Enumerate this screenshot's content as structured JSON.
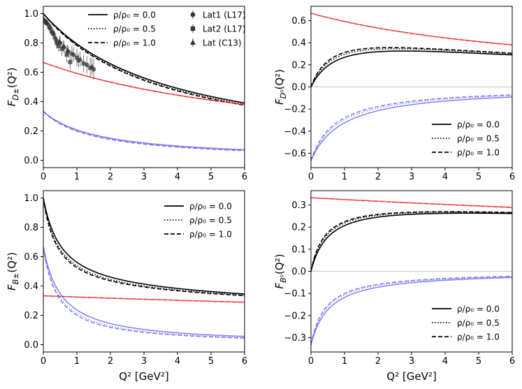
{
  "figure": {
    "xlabel_top": "",
    "xlabel_bottom": "Q² [GeV²]"
  },
  "chart_data": [
    {
      "type": "line",
      "panel": "top-left",
      "ylabel": "F_{D±}(Q²)",
      "ylabel_main": "F",
      "ylabel_sub": "D±",
      "ylabel_tail": "(Q²)",
      "xlabel": "",
      "xlim": [
        0,
        6
      ],
      "ylim": [
        -0.05,
        1.05
      ],
      "xticks": [
        "0",
        "1",
        "2",
        "3",
        "4",
        "5",
        "6"
      ],
      "yticks": [
        "0.0",
        "0.2",
        "0.4",
        "0.6",
        "0.8",
        "1.0"
      ],
      "ytick_values": [
        0.0,
        0.2,
        0.4,
        0.6,
        0.8,
        1.0
      ],
      "zero_line": false,
      "legend_position": "top-right",
      "legend": {
        "lines": [
          {
            "label": "ρ/ρ₀ = 0.0",
            "style": "solid"
          },
          {
            "label": "ρ/ρ₀ = 0.5",
            "style": "dotted"
          },
          {
            "label": "ρ/ρ₀ = 1.0",
            "style": "dashed"
          }
        ],
        "markers": [
          {
            "label": "Lat1 (L17)",
            "marker": "circle"
          },
          {
            "label": "Lat2 (L17)",
            "marker": "square"
          },
          {
            "label": "Lat (C13)",
            "marker": "triangle"
          }
        ]
      },
      "colors": {
        "total": "#000000",
        "component_a": "#ee3333",
        "component_b": "#5555ee"
      },
      "series": [
        {
          "name": "total ρ/ρ₀=0.0",
          "color": "#000000",
          "style": "solid",
          "form": "pole",
          "start": 1.0,
          "mass2": 3.85
        },
        {
          "name": "total ρ/ρ₀=0.5",
          "color": "#000000",
          "style": "dotted",
          "form": "pole",
          "start": 1.0,
          "mass2": 3.7
        },
        {
          "name": "total ρ/ρ₀=1.0",
          "color": "#000000",
          "style": "dashed",
          "form": "pole",
          "start": 1.0,
          "mass2": 3.6
        },
        {
          "name": "red ρ/ρ₀=0.0",
          "color": "#ee3333",
          "style": "solid",
          "form": "pole",
          "start": 0.667,
          "mass2": 8.0
        },
        {
          "name": "red ρ/ρ₀=0.5",
          "color": "#ee3333",
          "style": "dotted",
          "form": "pole",
          "start": 0.667,
          "mass2": 7.95
        },
        {
          "name": "red ρ/ρ₀=1.0",
          "color": "#ee3333",
          "style": "dashed",
          "form": "pole",
          "start": 0.667,
          "mass2": 7.9
        },
        {
          "name": "blue ρ/ρ₀=0.0",
          "color": "#5555ee",
          "style": "solid",
          "form": "pole2",
          "start": 0.333,
          "mass2": 1.65
        },
        {
          "name": "blue ρ/ρ₀=0.5",
          "color": "#5555ee",
          "style": "dotted",
          "form": "pole2",
          "start": 0.333,
          "mass2": 1.55
        },
        {
          "name": "blue ρ/ρ₀=1.0",
          "color": "#5555ee",
          "style": "dashed",
          "form": "pole2",
          "start": 0.333,
          "mass2": 1.48
        }
      ],
      "points": [
        {
          "set": "Lat1 (L17)",
          "marker": "circle",
          "x": [
            0.05,
            0.12,
            0.2,
            0.3,
            0.38,
            0.5,
            0.62,
            0.75,
            0.9,
            1.05,
            1.3,
            1.5
          ],
          "y": [
            0.95,
            0.93,
            0.9,
            0.86,
            0.82,
            0.8,
            0.77,
            0.74,
            0.72,
            0.68,
            0.65,
            0.62
          ],
          "err": [
            0.02,
            0.02,
            0.03,
            0.03,
            0.03,
            0.04,
            0.04,
            0.04,
            0.05,
            0.05,
            0.06,
            0.07
          ]
        },
        {
          "set": "Lat2 (L17)",
          "marker": "square",
          "x": [
            0.08,
            0.18,
            0.28,
            0.4,
            0.45,
            0.55,
            0.7,
            0.8,
            1.0,
            1.2,
            1.4
          ],
          "y": [
            0.94,
            0.91,
            0.87,
            0.8,
            0.78,
            0.76,
            0.72,
            0.67,
            0.7,
            0.66,
            0.63
          ],
          "err": [
            0.02,
            0.03,
            0.03,
            0.04,
            0.04,
            0.05,
            0.05,
            0.05,
            0.06,
            0.06,
            0.07
          ]
        },
        {
          "set": "Lat (C13)",
          "marker": "triangle",
          "x": [
            0.02,
            0.1,
            0.25,
            0.35,
            0.48,
            0.6,
            0.72,
            0.85,
            1.1,
            1.45
          ],
          "y": [
            0.96,
            0.94,
            0.88,
            0.84,
            0.81,
            0.78,
            0.75,
            0.73,
            0.69,
            0.64
          ],
          "err": [
            0.02,
            0.02,
            0.03,
            0.03,
            0.04,
            0.04,
            0.04,
            0.05,
            0.05,
            0.06
          ]
        }
      ]
    },
    {
      "type": "line",
      "panel": "top-right",
      "ylabel": "F_{D⁰}(Q²)",
      "ylabel_main": "F",
      "ylabel_sub": "D⁰",
      "ylabel_tail": "(Q²)",
      "xlabel": "",
      "xlim": [
        0,
        6
      ],
      "ylim": [
        -0.73,
        0.73
      ],
      "xticks": [
        "0",
        "1",
        "2",
        "3",
        "4",
        "5",
        "6"
      ],
      "yticks": [
        "−0.6",
        "−0.4",
        "−0.2",
        "0.0",
        "0.2",
        "0.4",
        "0.6"
      ],
      "ytick_values": [
        -0.6,
        -0.4,
        -0.2,
        0.0,
        0.2,
        0.4,
        0.6
      ],
      "zero_line": true,
      "legend_position": "bottom-right",
      "legend": {
        "lines": [
          {
            "label": "ρ/ρ₀ = 0.0",
            "style": "solid"
          },
          {
            "label": "ρ/ρ₀ = 0.5",
            "style": "dotted"
          },
          {
            "label": "ρ/ρ₀ = 1.0",
            "style": "dashed"
          }
        ],
        "markers": []
      },
      "series": [
        {
          "name": "total ρ/ρ₀=0.0",
          "color": "#000000",
          "style": "solid",
          "form": "diff",
          "a": 0.667,
          "ma": 8.0,
          "b": 0.667,
          "mb": 0.95
        },
        {
          "name": "total ρ/ρ₀=0.5",
          "color": "#000000",
          "style": "dotted",
          "form": "diff",
          "a": 0.667,
          "ma": 7.9,
          "b": 0.667,
          "mb": 0.8
        },
        {
          "name": "total ρ/ρ₀=1.0",
          "color": "#000000",
          "style": "dashed",
          "form": "diff",
          "a": 0.667,
          "ma": 7.8,
          "b": 0.667,
          "mb": 0.72
        },
        {
          "name": "red ρ/ρ₀=0.0",
          "color": "#ee3333",
          "style": "solid",
          "form": "pole",
          "start": 0.667,
          "mass2": 8.0
        },
        {
          "name": "red ρ/ρ₀=0.5",
          "color": "#ee3333",
          "style": "dotted",
          "form": "pole",
          "start": 0.667,
          "mass2": 7.95
        },
        {
          "name": "red ρ/ρ₀=1.0",
          "color": "#ee3333",
          "style": "dashed",
          "form": "pole",
          "start": 0.667,
          "mass2": 7.9
        },
        {
          "name": "blue ρ/ρ₀=0.0",
          "color": "#5555ee",
          "style": "solid",
          "form": "pole2",
          "start": -0.667,
          "mass2": 0.95
        },
        {
          "name": "blue ρ/ρ₀=0.5",
          "color": "#5555ee",
          "style": "dotted",
          "form": "pole2",
          "start": -0.667,
          "mass2": 0.8
        },
        {
          "name": "blue ρ/ρ₀=1.0",
          "color": "#5555ee",
          "style": "dashed",
          "form": "pole2",
          "start": -0.667,
          "mass2": 0.72
        }
      ],
      "points": []
    },
    {
      "type": "line",
      "panel": "bottom-left",
      "ylabel": "F_{B±}(Q²)",
      "ylabel_main": "F",
      "ylabel_sub": "B±",
      "ylabel_tail": "(Q²)",
      "xlabel": "Q² [GeV²]",
      "xlim": [
        0,
        6
      ],
      "ylim": [
        -0.05,
        1.05
      ],
      "xticks": [
        "0",
        "1",
        "2",
        "3",
        "4",
        "5",
        "6"
      ],
      "yticks": [
        "0.0",
        "0.2",
        "0.4",
        "0.6",
        "0.8",
        "1.0"
      ],
      "ytick_values": [
        0.0,
        0.2,
        0.4,
        0.6,
        0.8,
        1.0
      ],
      "zero_line": false,
      "legend_position": "top-right",
      "legend": {
        "lines": [
          {
            "label": "ρ/ρ₀ = 0.0",
            "style": "solid"
          },
          {
            "label": "ρ/ρ₀ = 0.5",
            "style": "dotted"
          },
          {
            "label": "ρ/ρ₀ = 1.0",
            "style": "dashed"
          }
        ],
        "markers": []
      },
      "series": [
        {
          "name": "total ρ/ρ₀=0.0",
          "color": "#000000",
          "style": "solid",
          "form": "sum",
          "a": 0.333,
          "ma": 40.0,
          "b": 0.667,
          "mb": 0.55
        },
        {
          "name": "total ρ/ρ₀=0.5",
          "color": "#000000",
          "style": "dotted",
          "form": "sum",
          "a": 0.333,
          "ma": 40.0,
          "b": 0.667,
          "mb": 0.47
        },
        {
          "name": "total ρ/ρ₀=1.0",
          "color": "#000000",
          "style": "dashed",
          "form": "sum",
          "a": 0.333,
          "ma": 40.0,
          "b": 0.667,
          "mb": 0.43
        },
        {
          "name": "red ρ/ρ₀=0.0",
          "color": "#ee3333",
          "style": "solid",
          "form": "pole",
          "start": 0.333,
          "mass2": 40.0
        },
        {
          "name": "red ρ/ρ₀=0.5",
          "color": "#ee3333",
          "style": "dotted",
          "form": "pole",
          "start": 0.333,
          "mass2": 39.5
        },
        {
          "name": "red ρ/ρ₀=1.0",
          "color": "#ee3333",
          "style": "dashed",
          "form": "pole",
          "start": 0.333,
          "mass2": 39.0
        },
        {
          "name": "blue ρ/ρ₀=0.0",
          "color": "#5555ee",
          "style": "solid",
          "form": "pole2",
          "start": 0.667,
          "mass2": 0.55
        },
        {
          "name": "blue ρ/ρ₀=0.5",
          "color": "#5555ee",
          "style": "dotted",
          "form": "pole2",
          "start": 0.667,
          "mass2": 0.47
        },
        {
          "name": "blue ρ/ρ₀=1.0",
          "color": "#5555ee",
          "style": "dashed",
          "form": "pole2",
          "start": 0.667,
          "mass2": 0.43
        }
      ],
      "points": []
    },
    {
      "type": "line",
      "panel": "bottom-right",
      "ylabel": "F_{B⁰}(Q²)",
      "ylabel_main": "F",
      "ylabel_sub": "B⁰",
      "ylabel_tail": "(Q²)",
      "xlabel": "Q² [GeV²]",
      "xlim": [
        0,
        6
      ],
      "ylim": [
        -0.365,
        0.365
      ],
      "xticks": [
        "0",
        "1",
        "2",
        "3",
        "4",
        "5",
        "6"
      ],
      "yticks": [
        "−0.3",
        "−0.2",
        "−0.1",
        "0.0",
        "0.1",
        "0.2",
        "0.3"
      ],
      "ytick_values": [
        -0.3,
        -0.2,
        -0.1,
        0.0,
        0.1,
        0.2,
        0.3
      ],
      "zero_line": true,
      "legend_position": "bottom-right",
      "legend": {
        "lines": [
          {
            "label": "ρ/ρ₀ = 0.0",
            "style": "solid"
          },
          {
            "label": "ρ/ρ₀ = 0.5",
            "style": "dotted"
          },
          {
            "label": "ρ/ρ₀ = 1.0",
            "style": "dashed"
          }
        ],
        "markers": []
      },
      "series": [
        {
          "name": "total ρ/ρ₀=0.0",
          "color": "#000000",
          "style": "solid",
          "form": "diff",
          "a": 0.333,
          "ma": 40.0,
          "b": 0.333,
          "mb": 0.55
        },
        {
          "name": "total ρ/ρ₀=0.5",
          "color": "#000000",
          "style": "dotted",
          "form": "diff",
          "a": 0.333,
          "ma": 39.5,
          "b": 0.333,
          "mb": 0.47
        },
        {
          "name": "total ρ/ρ₀=1.0",
          "color": "#000000",
          "style": "dashed",
          "form": "diff",
          "a": 0.333,
          "ma": 39.0,
          "b": 0.333,
          "mb": 0.43
        },
        {
          "name": "red ρ/ρ₀=0.0",
          "color": "#ee3333",
          "style": "solid",
          "form": "pole",
          "start": 0.333,
          "mass2": 40.0
        },
        {
          "name": "red ρ/ρ₀=0.5",
          "color": "#ee3333",
          "style": "dotted",
          "form": "pole",
          "start": 0.333,
          "mass2": 39.5
        },
        {
          "name": "red ρ/ρ₀=1.0",
          "color": "#ee3333",
          "style": "dashed",
          "form": "pole",
          "start": 0.333,
          "mass2": 39.0
        },
        {
          "name": "blue ρ/ρ₀=0.0",
          "color": "#5555ee",
          "style": "solid",
          "form": "pole2",
          "start": -0.333,
          "mass2": 0.55
        },
        {
          "name": "blue ρ/ρ₀=0.5",
          "color": "#5555ee",
          "style": "dotted",
          "form": "pole2",
          "start": -0.333,
          "mass2": 0.47
        },
        {
          "name": "blue ρ/ρ₀=1.0",
          "color": "#5555ee",
          "style": "dashed",
          "form": "pole2",
          "start": -0.333,
          "mass2": 0.43
        }
      ],
      "points": []
    }
  ]
}
